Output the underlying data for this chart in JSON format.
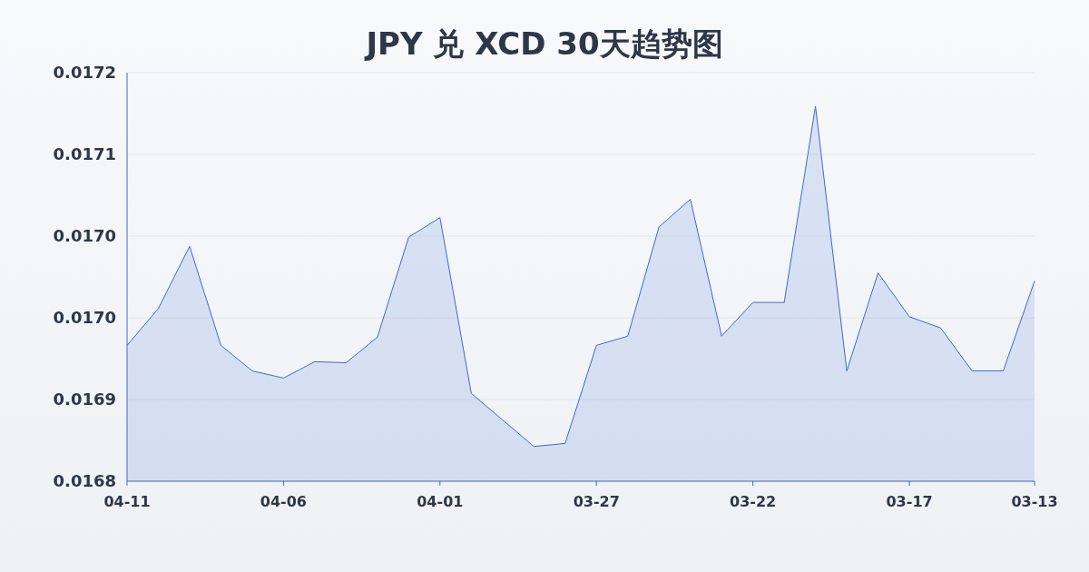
{
  "chart_data": {
    "type": "area",
    "title": "JPY 兑 XCD 30天趋势图",
    "categories": [
      "04-11",
      null,
      null,
      null,
      null,
      "04-06",
      null,
      null,
      null,
      null,
      "04-01",
      null,
      null,
      null,
      null,
      "03-27",
      null,
      null,
      null,
      null,
      "03-22",
      null,
      null,
      null,
      null,
      "03-17",
      null,
      null,
      null,
      "03-13"
    ],
    "series": [
      {
        "color": "#3a6bd0",
        "values": [
          0.016933,
          0.016969,
          0.01703,
          0.016933,
          0.016908,
          0.016901,
          0.016917,
          0.016916,
          0.016941,
          0.017039,
          0.017058,
          0.016886,
          0.01686,
          0.016834,
          0.016837,
          0.016933,
          0.016942,
          0.017049,
          0.017076,
          0.016942,
          0.016975,
          0.016975,
          0.017167,
          0.016908,
          0.017004,
          0.016961,
          0.01695,
          0.016908,
          0.016908,
          0.016996
        ]
      }
    ],
    "ylim": [
      0.0168,
      0.0172
    ],
    "yticks": [
      {
        "value": 0.0168,
        "label": "0.0168"
      },
      {
        "value": 0.01688,
        "label": "0.0169"
      },
      {
        "value": 0.01696,
        "label": "0.0170"
      },
      {
        "value": 0.01704,
        "label": "0.0170"
      },
      {
        "value": 0.01712,
        "label": "0.0171"
      },
      {
        "value": 0.0172,
        "label": "0.0172"
      }
    ],
    "grid": "y"
  }
}
